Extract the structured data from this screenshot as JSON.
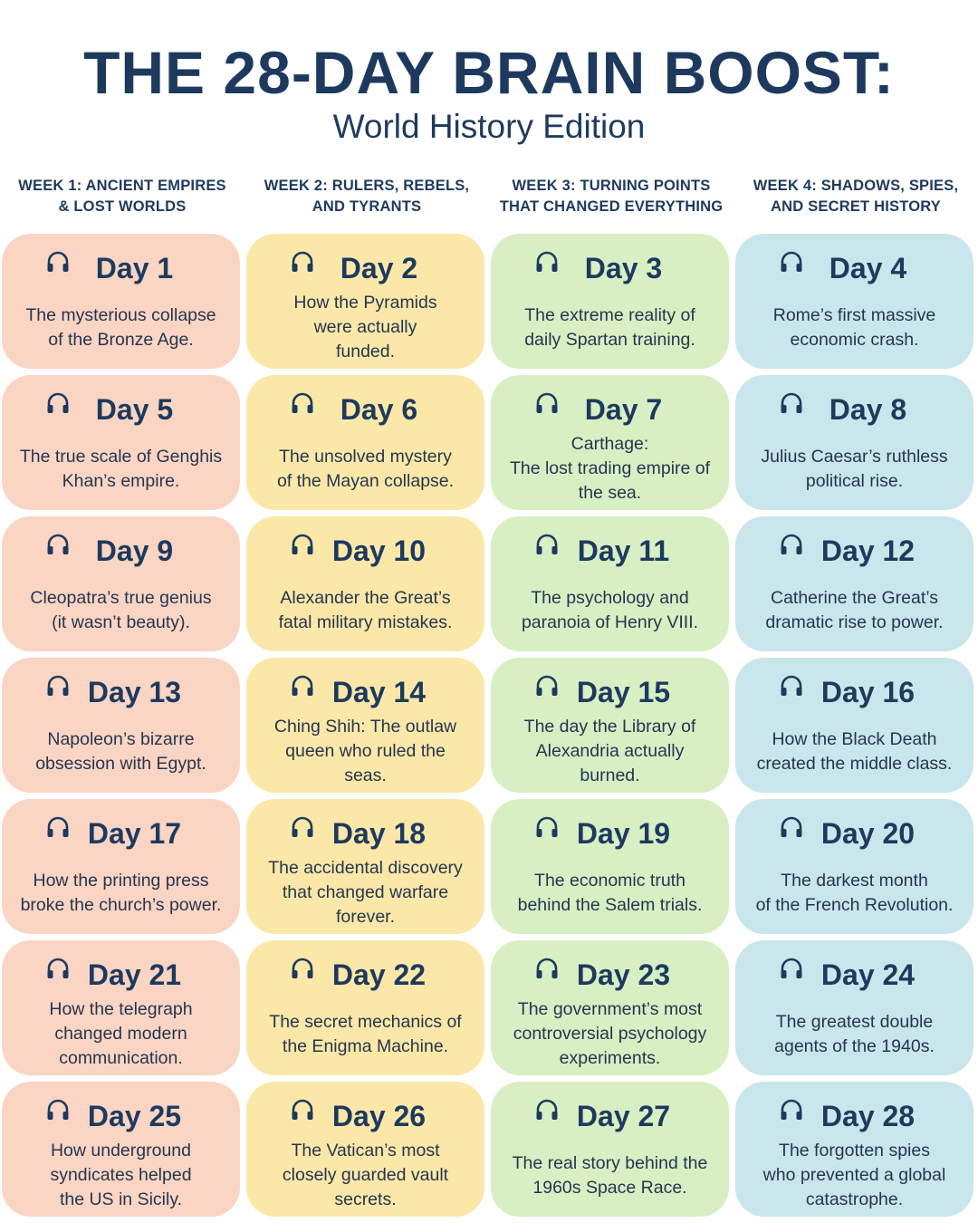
{
  "title": "THE 28-DAY BRAIN BOOST:",
  "subtitle": "World History Edition",
  "icon": "headphones-icon",
  "colors": {
    "week1": "#fbd5c4",
    "week2": "#fbe8a8",
    "week3": "#d8efc4",
    "week4": "#c9e6ec",
    "text": "#1d3a5e"
  },
  "weeks": [
    {
      "label": "WEEK 1: ANCIENT EMPIRES\n& LOST WORLDS"
    },
    {
      "label": "WEEK 2: RULERS, REBELS,\nAND TYRANTS"
    },
    {
      "label": "WEEK 3: TURNING POINTS\nTHAT CHANGED EVERYTHING"
    },
    {
      "label": "WEEK 4: SHADOWS, SPIES,\nAND SECRET HISTORY"
    }
  ],
  "days": [
    {
      "day": "Day 1",
      "text": "The mysterious collapse\nof the Bronze Age."
    },
    {
      "day": "Day 2",
      "text": "How the Pyramids\nwere actually\nfunded."
    },
    {
      "day": "Day 3",
      "text": "The extreme reality of\ndaily Spartan training."
    },
    {
      "day": "Day 4",
      "text": "Rome’s first massive\neconomic crash."
    },
    {
      "day": "Day 5",
      "text": "The true scale of Genghis\nKhan’s empire."
    },
    {
      "day": "Day 6",
      "text": "The unsolved mystery\nof the Mayan collapse."
    },
    {
      "day": "Day 7",
      "text": "Carthage:\nThe lost trading empire of\nthe sea."
    },
    {
      "day": "Day 8",
      "text": "Julius Caesar’s ruthless\npolitical rise."
    },
    {
      "day": "Day 9",
      "text": "Cleopatra’s true genius\n(it wasn’t beauty)."
    },
    {
      "day": "Day 10",
      "text": "Alexander the Great’s\nfatal military mistakes."
    },
    {
      "day": "Day 11",
      "text": "The psychology and\nparanoia of Henry VIII."
    },
    {
      "day": "Day 12",
      "text": "Catherine the Great’s\ndramatic rise to power."
    },
    {
      "day": "Day 13",
      "text": "Napoleon’s bizarre\nobsession with Egypt."
    },
    {
      "day": "Day 14",
      "text": "Ching Shih: The outlaw\nqueen who ruled the\nseas."
    },
    {
      "day": "Day 15",
      "text": "The day the Library of\nAlexandria actually\nburned."
    },
    {
      "day": "Day 16",
      "text": "How the Black Death\ncreated the middle class."
    },
    {
      "day": "Day 17",
      "text": "How the printing press\nbroke the church’s power."
    },
    {
      "day": "Day 18",
      "text": "The accidental discovery\nthat changed warfare\nforever."
    },
    {
      "day": "Day 19",
      "text": "The economic truth\nbehind the Salem trials."
    },
    {
      "day": "Day 20",
      "text": "The darkest month\nof the French Revolution."
    },
    {
      "day": "Day 21",
      "text": "How the telegraph\nchanged modern\ncommunication."
    },
    {
      "day": "Day 22",
      "text": "The secret mechanics of\nthe Enigma Machine."
    },
    {
      "day": "Day 23",
      "text": "The government’s most\ncontroversial psychology\nexperiments."
    },
    {
      "day": "Day 24",
      "text": "The greatest double\nagents of the 1940s."
    },
    {
      "day": "Day 25",
      "text": "How underground\nsyndicates helped\nthe US in Sicily."
    },
    {
      "day": "Day 26",
      "text": "The Vatican’s most\nclosely guarded vault\nsecrets."
    },
    {
      "day": "Day 27",
      "text": "The real story behind the\n1960s Space Race."
    },
    {
      "day": "Day 28",
      "text": "The forgotten spies\nwho prevented a global\ncatastrophe."
    }
  ]
}
